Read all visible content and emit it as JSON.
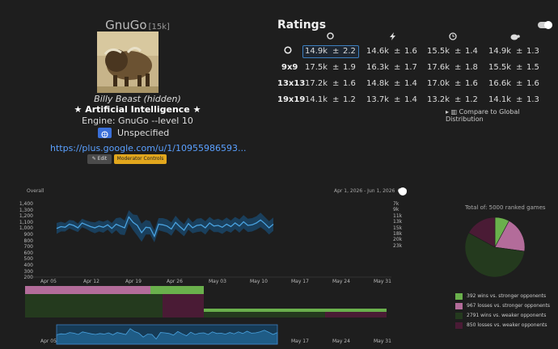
{
  "profile": {
    "username": "GnuGo",
    "rank": "[15k]",
    "real_name": "Billy Beast (hidden)",
    "ai_title": "Artificial Intelligence",
    "engine": "Engine: GnuGo --level 10",
    "country": "Unspecified",
    "website": "https://plus.google.com/u/1/10955986593...",
    "edit_label": "Edit",
    "moderator_label": "Moderator Controls"
  },
  "ratings": {
    "title": "Ratings",
    "rows": [
      {
        "label": "",
        "cells": [
          [
            "14.9k",
            "±",
            "2.2"
          ],
          [
            "14.6k",
            "±",
            "1.6"
          ],
          [
            "15.5k",
            "±",
            "1.4"
          ],
          [
            "14.9k",
            "±",
            "1.3"
          ]
        ]
      },
      {
        "label": "9x9",
        "cells": [
          [
            "17.5k",
            "±",
            "1.9"
          ],
          [
            "16.3k",
            "±",
            "1.7"
          ],
          [
            "17.6k",
            "±",
            "1.8"
          ],
          [
            "15.5k",
            "±",
            "1.5"
          ]
        ]
      },
      {
        "label": "13x13",
        "cells": [
          [
            "17.2k",
            "±",
            "1.6"
          ],
          [
            "14.8k",
            "±",
            "1.4"
          ],
          [
            "17.0k",
            "±",
            "1.6"
          ],
          [
            "16.6k",
            "±",
            "1.6"
          ]
        ]
      },
      {
        "label": "19x19",
        "cells": [
          [
            "14.1k",
            "±",
            "1.2"
          ],
          [
            "13.7k",
            "±",
            "1.4"
          ],
          [
            "13.2k",
            "±",
            "1.2"
          ],
          [
            "14.1k",
            "±",
            "1.3"
          ]
        ]
      }
    ],
    "compare_label": "Compare to Global Distribution"
  },
  "chart_data": [
    {
      "type": "area",
      "label": "Overall",
      "date_range": "Apr 1, 2026 - Jun 1, 2026",
      "y_ticks_left": [
        "1,400",
        "1,300",
        "1,200",
        "1,100",
        "1,000",
        "900",
        "800",
        "700",
        "600",
        "500",
        "400",
        "300",
        "200"
      ],
      "y_ticks_right": [
        "7k",
        "9k",
        "11k",
        "13k",
        "15k",
        "18k",
        "20k",
        "23k"
      ],
      "x_ticks": [
        "Apr 05",
        "Apr 12",
        "Apr 19",
        "Apr 26",
        "May 03",
        "May 10",
        "May 17",
        "May 24",
        "May 31"
      ],
      "ylim": [
        200,
        1400
      ],
      "rating_values": [
        990,
        1020,
        1010,
        1060,
        1040,
        1000,
        1080,
        1050,
        1020,
        1000,
        1030,
        1010,
        1050,
        990,
        1060,
        1030,
        1000,
        1180,
        1090,
        1040,
        920,
        1010,
        1000,
        860,
        1060,
        1050,
        1030,
        980,
        1090,
        1020,
        960,
        1070,
        1000,
        1040,
        1050,
        1000,
        1080,
        1030,
        1040,
        1010,
        1060,
        1020,
        1080,
        1030,
        1100,
        1040,
        1050,
        1080,
        1130,
        1070,
        1000,
        1060
      ],
      "band_half_width": [
        90,
        80,
        70,
        70,
        80,
        70,
        70,
        70,
        80,
        90,
        90,
        90,
        80,
        90,
        100,
        140,
        120,
        110,
        130,
        170,
        150,
        120,
        110,
        100,
        100,
        110,
        110,
        110,
        110,
        100,
        100,
        100,
        90,
        110,
        110,
        110,
        100,
        100,
        110,
        110,
        110,
        100,
        100,
        110,
        110,
        110,
        110,
        110,
        120,
        110,
        110,
        110
      ]
    },
    {
      "type": "pie",
      "title": "Total of: 5000 ranked games",
      "slices": [
        {
          "name": "392 wins vs. stronger opponents",
          "value": 392,
          "color": "#6ab04c"
        },
        {
          "name": "967 losses vs. stronger opponents",
          "value": 967,
          "color": "#b36c9a"
        },
        {
          "name": "2791 wins vs. weaker opponents",
          "value": 2791,
          "color": "#243a1e"
        },
        {
          "name": "850 losses vs. weaker opponents",
          "value": 850,
          "color": "#4a1b35"
        }
      ]
    }
  ],
  "colors": {
    "accent": "#3d7fc0",
    "link": "#5aa0ff",
    "moderator": "#e2a71d"
  }
}
